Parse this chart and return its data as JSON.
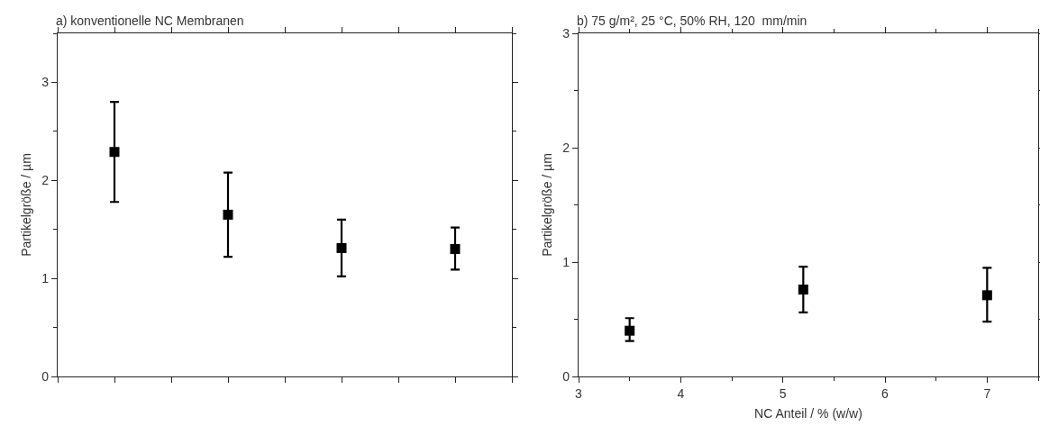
{
  "chart_data": [
    {
      "type": "scatter",
      "title": "a) konventionelle NC Membranen",
      "ylabel": "Partikelgröße / µm",
      "categories": [
        null,
        null,
        null,
        null
      ],
      "values": [
        2.29,
        1.65,
        1.31,
        1.3
      ],
      "errors": [
        [
          1.78,
          2.8
        ],
        [
          1.22,
          2.08
        ],
        [
          1.02,
          1.6
        ],
        [
          1.09,
          1.52
        ]
      ],
      "color": "#000000",
      "marker": "square",
      "ylim": [
        0,
        3.5
      ],
      "yticks": [
        0,
        1,
        2,
        3
      ],
      "grid": false
    },
    {
      "type": "scatter",
      "title": "b) 75 g/m², 25 °C, 50% RH, 120  mm/min",
      "xlabel": "NC Anteil / % (w/w)",
      "ylabel": "Partikelgröße / µm",
      "x": [
        3.5,
        5.2,
        7.0
      ],
      "values": [
        0.4,
        0.76,
        0.71
      ],
      "errors": [
        [
          0.31,
          0.51
        ],
        [
          0.56,
          0.96
        ],
        [
          0.48,
          0.95
        ]
      ],
      "color": "#000000",
      "marker": "square",
      "xlim": [
        3,
        7.5
      ],
      "xticks": [
        3,
        4,
        5,
        6,
        7
      ],
      "ylim": [
        0,
        3
      ],
      "yticks": [
        0,
        1,
        2,
        3
      ],
      "grid": false
    }
  ]
}
